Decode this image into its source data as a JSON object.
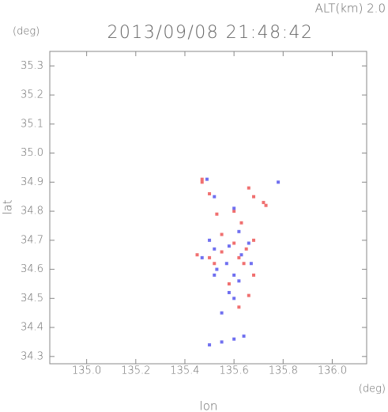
{
  "chart_data": {
    "type": "scatter",
    "title": "2013/09/08 21:48:42",
    "altitude": "ALT(km) 2.0",
    "y_unit": "(deg)",
    "x_unit": "(deg)",
    "x_label": "lon",
    "y_label": "lat",
    "xlim": [
      134.85,
      136.14
    ],
    "ylim": [
      34.275,
      35.35
    ],
    "xticks": [
      {
        "value": 135.0,
        "label": "135.0"
      },
      135.2,
      135.4,
      135.6,
      135.8,
      {
        "value": 136.0,
        "label": "136.0"
      }
    ],
    "yticks": [
      34.3,
      34.4,
      34.5,
      34.6,
      34.7,
      34.8,
      34.9,
      {
        "value": 35.0,
        "label": "35.0"
      },
      35.1,
      35.2,
      35.3
    ],
    "series": [
      {
        "color": "#f07070",
        "x": [
          135.47,
          135.5,
          135.53,
          135.66,
          135.68,
          135.73,
          135.72,
          135.6,
          135.63,
          135.45,
          135.5,
          135.55,
          135.62,
          135.68,
          135.64,
          135.58,
          135.62,
          135.66,
          135.52,
          135.6,
          135.68,
          135.47,
          135.55,
          135.65
        ],
        "y": [
          34.91,
          34.86,
          34.79,
          34.88,
          34.85,
          34.82,
          34.83,
          34.8,
          34.76,
          34.65,
          34.64,
          34.66,
          34.64,
          34.7,
          34.62,
          34.55,
          34.47,
          34.51,
          34.62,
          34.69,
          34.58,
          34.9,
          34.72,
          34.67
        ]
      },
      {
        "color": "#7070f0",
        "x": [
          135.49,
          135.52,
          135.78,
          135.6,
          135.62,
          135.5,
          135.53,
          135.57,
          135.6,
          135.63,
          135.67,
          135.52,
          135.58,
          135.6,
          135.55,
          135.5,
          135.55,
          135.6,
          135.64,
          135.52,
          135.58,
          135.66,
          135.62,
          135.47
        ],
        "y": [
          34.91,
          34.85,
          34.9,
          34.81,
          34.73,
          34.7,
          34.6,
          34.62,
          34.58,
          34.65,
          34.62,
          34.58,
          34.52,
          34.5,
          34.45,
          34.34,
          34.35,
          34.36,
          34.37,
          34.67,
          34.68,
          34.69,
          34.56,
          34.64
        ]
      }
    ]
  }
}
